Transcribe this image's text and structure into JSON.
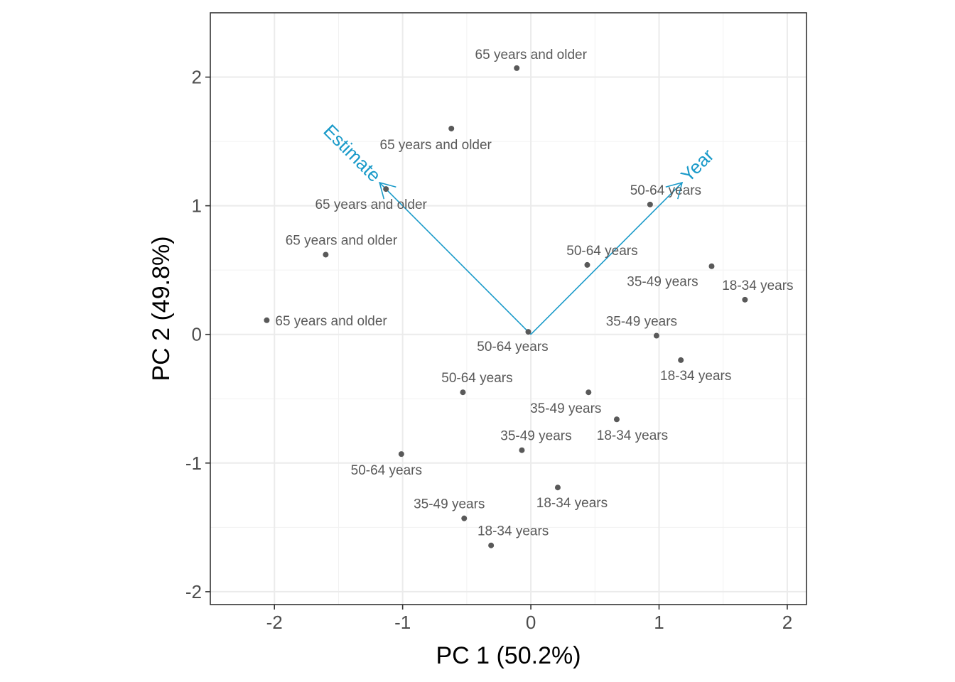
{
  "chart_data": {
    "type": "scatter",
    "xlabel": "PC 1 (50.2%)",
    "ylabel": "PC 2 (49.8%)",
    "xlim": [
      -2.5,
      2.15
    ],
    "ylim": [
      -2.1,
      2.5
    ],
    "x_ticks": [
      -2,
      -1,
      0,
      1,
      2
    ],
    "y_ticks": [
      -2,
      -1,
      0,
      1,
      2
    ],
    "x_tick_labels": [
      "-2",
      "-1",
      "0",
      "1",
      "2"
    ],
    "y_tick_labels": [
      "-2",
      "-1",
      "0",
      "1",
      "2"
    ],
    "grid": true,
    "point_color": "#595959",
    "vector_color": "#1a9ac9",
    "points": [
      {
        "x": -0.11,
        "y": 2.07,
        "label": "65 years and older"
      },
      {
        "x": -0.62,
        "y": 1.6,
        "label": "65 years and older"
      },
      {
        "x": -1.13,
        "y": 1.13,
        "label": "65 years and older"
      },
      {
        "x": -1.6,
        "y": 0.62,
        "label": "65 years and older"
      },
      {
        "x": -2.06,
        "y": 0.11,
        "label": "65 years and older"
      },
      {
        "x": 0.93,
        "y": 1.01,
        "label": "50-64 years"
      },
      {
        "x": 0.44,
        "y": 0.54,
        "label": "50-64 years"
      },
      {
        "x": -0.02,
        "y": 0.02,
        "label": "50-64 years"
      },
      {
        "x": -0.53,
        "y": -0.45,
        "label": "50-64 years"
      },
      {
        "x": -1.01,
        "y": -0.93,
        "label": "50-64 years"
      },
      {
        "x": 1.41,
        "y": 0.53,
        "label": "35-49 years"
      },
      {
        "x": 0.98,
        "y": -0.01,
        "label": "35-49 years"
      },
      {
        "x": 0.45,
        "y": -0.45,
        "label": "35-49 years"
      },
      {
        "x": -0.07,
        "y": -0.9,
        "label": "35-49 years"
      },
      {
        "x": -0.52,
        "y": -1.43,
        "label": "35-49 years"
      },
      {
        "x": 1.67,
        "y": 0.27,
        "label": "18-34 years"
      },
      {
        "x": 1.17,
        "y": -0.2,
        "label": "18-34 years"
      },
      {
        "x": 0.67,
        "y": -0.66,
        "label": "18-34 years"
      },
      {
        "x": 0.21,
        "y": -1.19,
        "label": "18-34 years"
      },
      {
        "x": -0.31,
        "y": -1.64,
        "label": "18-34 years"
      }
    ],
    "vectors": [
      {
        "name": "Estimate",
        "x": -1.18,
        "y": 1.18
      },
      {
        "name": "Year",
        "x": 1.18,
        "y": 1.18
      }
    ]
  }
}
